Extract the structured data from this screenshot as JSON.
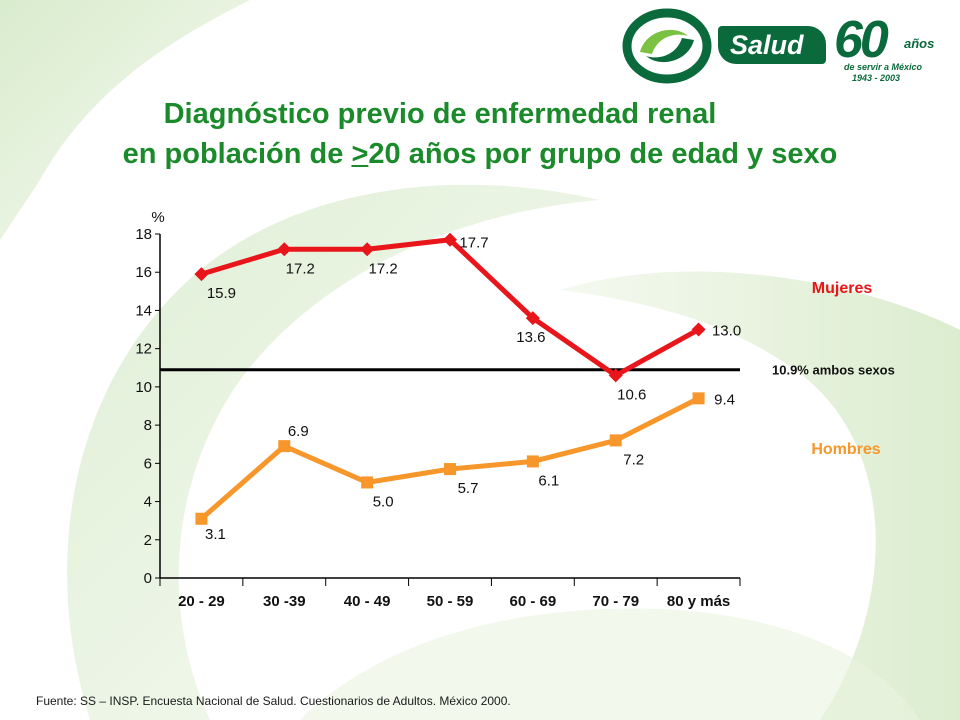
{
  "logo": {
    "word": "Salud",
    "sixty": "60",
    "anos": "años",
    "tagline": "de servir a México",
    "years": "1943 - 2003"
  },
  "title": {
    "line1": "Diagnóstico previo de enfermedad renal",
    "line2_pre": "en población de ",
    "line2_gt": ">",
    "line2_post": "20 años por grupo de edad y sexo"
  },
  "source": "Fuente: SS – INSP. Encuesta Nacional de Salud. Cuestionarios de Adultos. México 2000.",
  "colors": {
    "title": "#1a8a2b",
    "mujeres": "#e8161b",
    "hombres": "#f7962a",
    "reference": "#000000"
  },
  "chart_data": {
    "type": "line",
    "ylabel": "%",
    "ylim": [
      0,
      18
    ],
    "yticks": [
      "0",
      "2",
      "4",
      "6",
      "8",
      "10",
      "12",
      "14",
      "16",
      "18"
    ],
    "categories": [
      "20 - 29",
      "30 -39",
      "40 - 49",
      "50 - 59",
      "60 - 69",
      "70 - 79",
      "80 y más"
    ],
    "series": [
      {
        "name": "Mujeres",
        "values": [
          15.9,
          17.2,
          17.2,
          17.7,
          13.6,
          10.6,
          13.0
        ],
        "labels": [
          "15.9",
          "17.2",
          "17.2",
          "17.7",
          "13.6",
          "10.6",
          "13.0"
        ],
        "marker": "diamond"
      },
      {
        "name": "Hombres",
        "values": [
          3.1,
          6.9,
          5.0,
          5.7,
          6.1,
          7.2,
          9.4
        ],
        "labels": [
          "3.1",
          "6.9",
          "5.0",
          "5.7",
          "6.1",
          "7.2",
          "9.4"
        ],
        "marker": "square"
      }
    ],
    "reference": {
      "value": 10.9,
      "label": "10.9%  ambos sexos"
    }
  }
}
